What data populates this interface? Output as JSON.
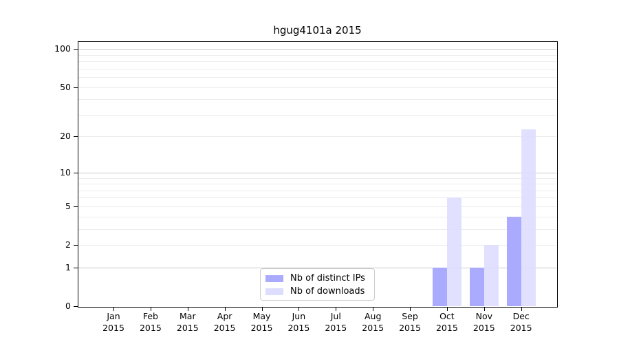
{
  "chart_data": {
    "type": "bar",
    "title": "hgug4101a 2015",
    "year_label": "2015",
    "categories": [
      "Jan",
      "Feb",
      "Mar",
      "Apr",
      "May",
      "Jun",
      "Jul",
      "Aug",
      "Sep",
      "Oct",
      "Nov",
      "Dec"
    ],
    "series": [
      {
        "name": "Nb of distinct IPs",
        "color": "#aaaaff",
        "values": [
          0,
          0,
          0,
          0,
          0,
          0,
          0,
          0,
          0,
          1,
          1,
          4
        ]
      },
      {
        "name": "Nb of downloads",
        "color": "#ddddff",
        "values": [
          0,
          0,
          0,
          0,
          0,
          0,
          0,
          0,
          0,
          6,
          2,
          23
        ]
      }
    ],
    "yscale": "log1p",
    "ylim": [
      0,
      115
    ],
    "yticks": [
      0,
      1,
      2,
      5,
      10,
      20,
      50,
      100
    ],
    "grid": true,
    "grid_major_values": [
      1,
      10,
      100
    ],
    "grid_minor_values": [
      2,
      3,
      4,
      5,
      6,
      7,
      8,
      9,
      20,
      30,
      40,
      50,
      60,
      70,
      80,
      90
    ],
    "legend_position": "bottom-center"
  },
  "colors": {
    "grid_major": "#c8c8c8",
    "grid_minor": "#ececec",
    "axis": "#000000",
    "background": "#ffffff"
  }
}
